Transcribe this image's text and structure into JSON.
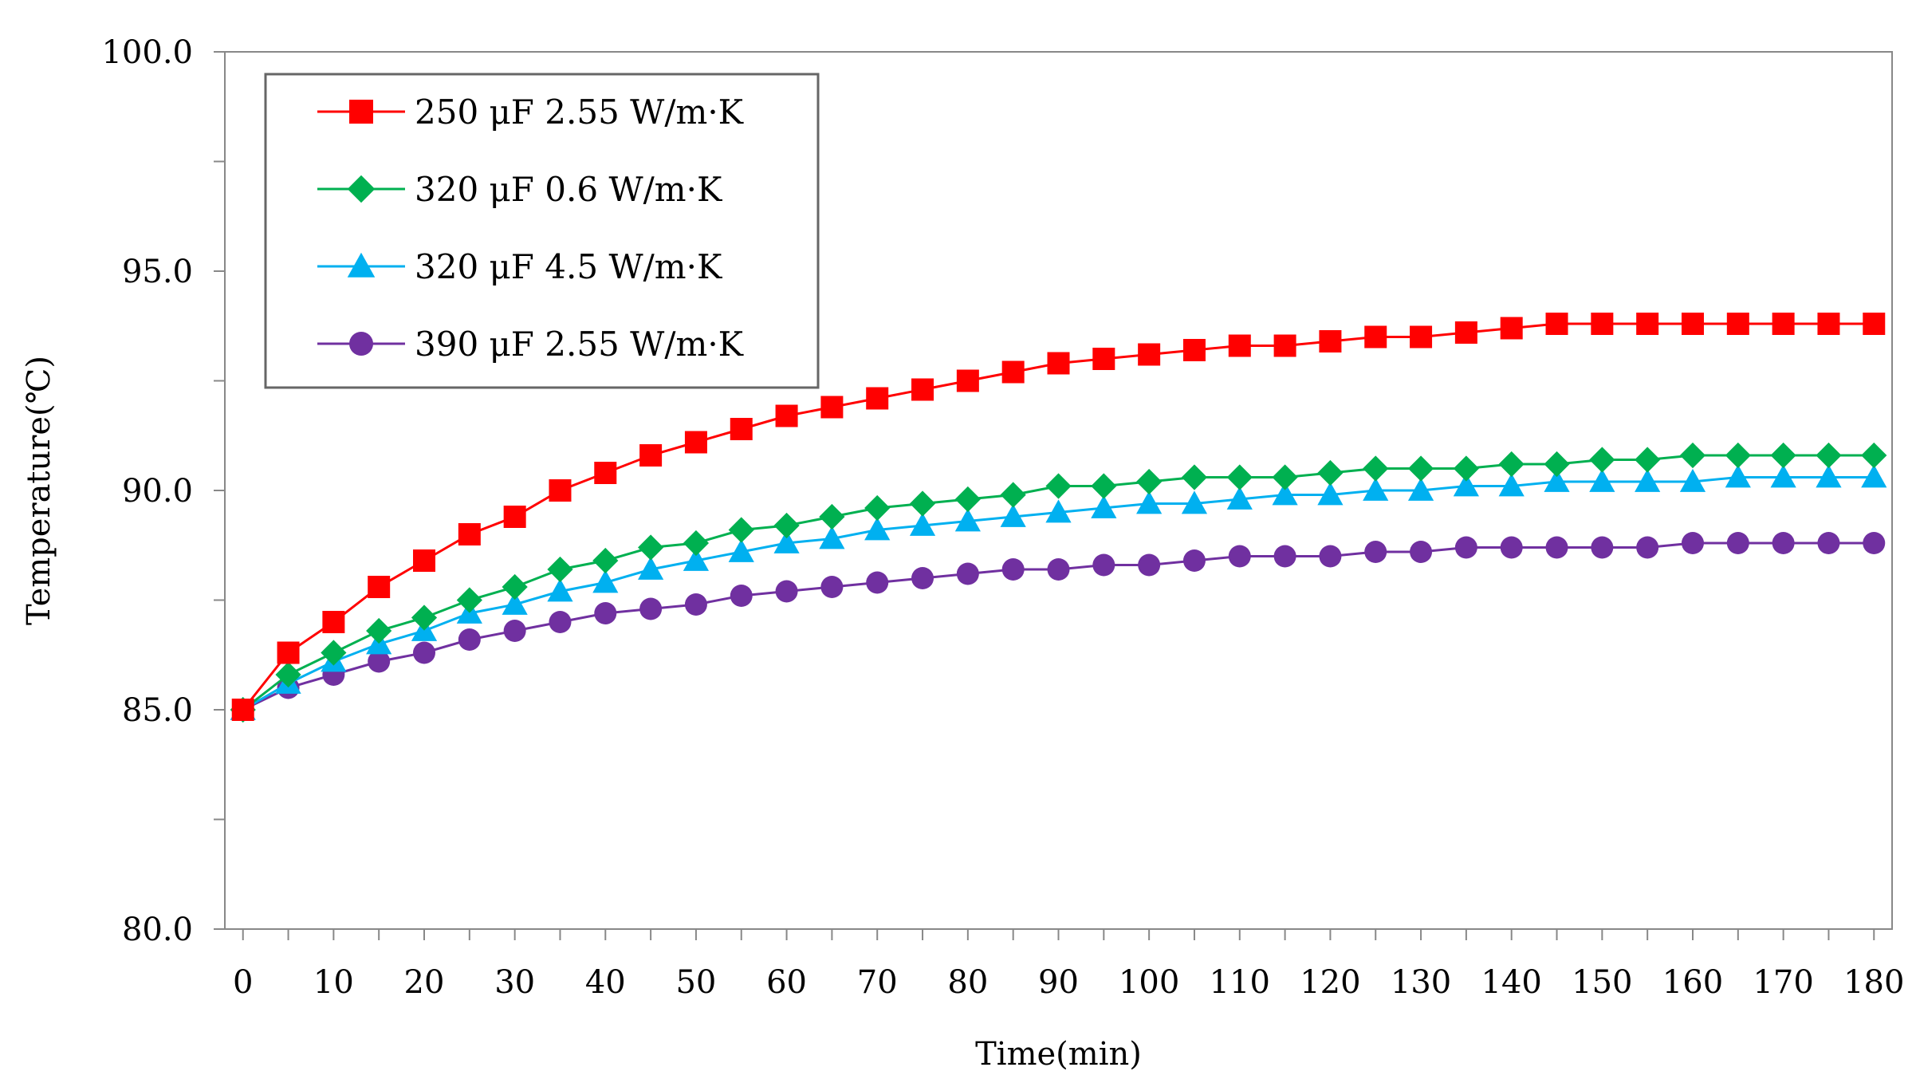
{
  "chart_data": {
    "type": "line",
    "title": "",
    "xlabel": "Time(min)",
    "ylabel": "Temperature(℃)",
    "xlim": [
      -2,
      182
    ],
    "ylim": [
      80,
      100
    ],
    "x_ticks": [
      0,
      10,
      20,
      30,
      40,
      50,
      60,
      70,
      80,
      90,
      100,
      110,
      120,
      130,
      140,
      150,
      160,
      170,
      180
    ],
    "y_ticks": [
      80,
      85,
      90,
      95,
      100
    ],
    "y_tick_labels": [
      "80.0",
      "85.0",
      "90.0",
      "95.0",
      "100.0"
    ],
    "x": [
      0,
      5,
      10,
      15,
      20,
      25,
      30,
      35,
      40,
      45,
      50,
      55,
      60,
      65,
      70,
      75,
      80,
      85,
      90,
      95,
      100,
      105,
      110,
      115,
      120,
      125,
      130,
      135,
      140,
      145,
      150,
      155,
      160,
      165,
      170,
      175,
      180
    ],
    "legend_position": "top-left",
    "series": [
      {
        "name": "250 μF 2.55 W/m·K",
        "color": "#ff0000",
        "marker": "square",
        "values": [
          85.0,
          86.3,
          87.0,
          87.8,
          88.4,
          89.0,
          89.4,
          90.0,
          90.4,
          90.8,
          91.1,
          91.4,
          91.7,
          91.9,
          92.1,
          92.3,
          92.5,
          92.7,
          92.9,
          93.0,
          93.1,
          93.2,
          93.3,
          93.3,
          93.4,
          93.5,
          93.5,
          93.6,
          93.7,
          93.8,
          93.8,
          93.8,
          93.8,
          93.8,
          93.8,
          93.8,
          93.8
        ]
      },
      {
        "name": "320 μF 0.6 W/m·K",
        "color": "#00b050",
        "marker": "diamond",
        "values": [
          85.0,
          85.8,
          86.3,
          86.8,
          87.1,
          87.5,
          87.8,
          88.2,
          88.4,
          88.7,
          88.8,
          89.1,
          89.2,
          89.4,
          89.6,
          89.7,
          89.8,
          89.9,
          90.1,
          90.1,
          90.2,
          90.3,
          90.3,
          90.3,
          90.4,
          90.5,
          90.5,
          90.5,
          90.6,
          90.6,
          90.7,
          90.7,
          90.8,
          90.8,
          90.8,
          90.8,
          90.8
        ]
      },
      {
        "name": "320 μF 4.5 W/m·K",
        "color": "#00b0f0",
        "marker": "triangle",
        "values": [
          85.0,
          85.6,
          86.1,
          86.5,
          86.8,
          87.2,
          87.4,
          87.7,
          87.9,
          88.2,
          88.4,
          88.6,
          88.8,
          88.9,
          89.1,
          89.2,
          89.3,
          89.4,
          89.5,
          89.6,
          89.7,
          89.7,
          89.8,
          89.9,
          89.9,
          90.0,
          90.0,
          90.1,
          90.1,
          90.2,
          90.2,
          90.2,
          90.2,
          90.3,
          90.3,
          90.3,
          90.3
        ]
      },
      {
        "name": "390 μF 2.55 W/m·K",
        "color": "#7030a0",
        "marker": "circle",
        "values": [
          85.0,
          85.5,
          85.8,
          86.1,
          86.3,
          86.6,
          86.8,
          87.0,
          87.2,
          87.3,
          87.4,
          87.6,
          87.7,
          87.8,
          87.9,
          88.0,
          88.1,
          88.2,
          88.2,
          88.3,
          88.3,
          88.4,
          88.5,
          88.5,
          88.5,
          88.6,
          88.6,
          88.7,
          88.7,
          88.7,
          88.7,
          88.7,
          88.8,
          88.8,
          88.8,
          88.8,
          88.8
        ]
      }
    ]
  }
}
